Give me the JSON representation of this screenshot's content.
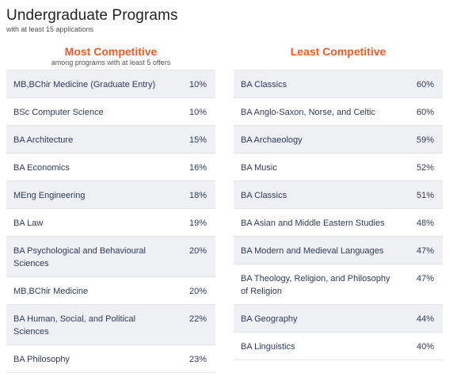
{
  "header": {
    "title": "Undergraduate Programs",
    "subtitle": "with at least 15 applications"
  },
  "most": {
    "title": "Most Competitive",
    "note": "among programs with at least 5 offers",
    "rows": [
      {
        "name": "MB,BChir Medicine (Graduate Entry)",
        "pct": "10%"
      },
      {
        "name": "BSc Computer Science",
        "pct": "10%"
      },
      {
        "name": "BA Architecture",
        "pct": "15%"
      },
      {
        "name": "BA Economics",
        "pct": "16%"
      },
      {
        "name": "MEng Engineering",
        "pct": "18%"
      },
      {
        "name": "BA Law",
        "pct": "19%"
      },
      {
        "name": "BA Psychological and Behavioural Sciences",
        "pct": "20%"
      },
      {
        "name": "MB,BChir Medicine",
        "pct": "20%"
      },
      {
        "name": "BA Human, Social, and Political Sciences",
        "pct": "22%"
      },
      {
        "name": "BA Philosophy",
        "pct": "23%"
      }
    ]
  },
  "least": {
    "title": "Least Competitive",
    "rows": [
      {
        "name": "BA Classics",
        "pct": "60%"
      },
      {
        "name": "BA Anglo-Saxon, Norse, and Celtic",
        "pct": "60%"
      },
      {
        "name": "BA Archaeology",
        "pct": "59%"
      },
      {
        "name": "BA Music",
        "pct": "52%"
      },
      {
        "name": "BA Classics",
        "pct": "51%"
      },
      {
        "name": "BA Asian and Middle Eastern Studies",
        "pct": "48%"
      },
      {
        "name": "BA Modern and Medieval Languages",
        "pct": "47%"
      },
      {
        "name": "BA Theology, Religion, and Philosophy of Religion",
        "pct": "47%"
      },
      {
        "name": "BA Geography",
        "pct": "44%"
      },
      {
        "name": "BA Linguistics",
        "pct": "40%"
      }
    ]
  }
}
